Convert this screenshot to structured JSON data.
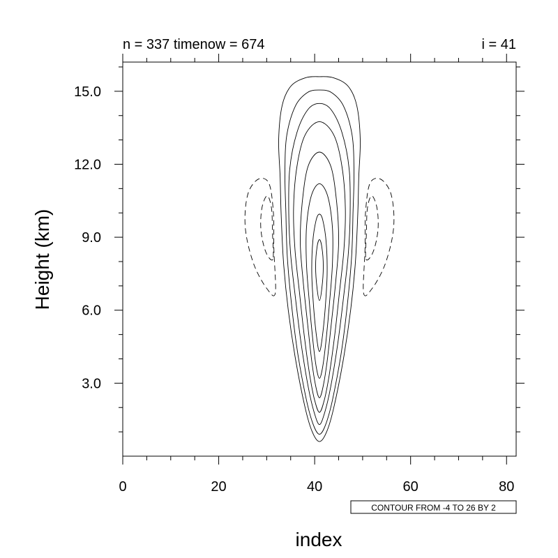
{
  "chart_data": {
    "type": "contour",
    "title_left": "n = 337 timenow = 674",
    "title_right": "i = 41",
    "xlabel": "index",
    "ylabel": "Height (km)",
    "xlim": [
      0,
      82
    ],
    "ylim": [
      0,
      16.2
    ],
    "x_ticks": [
      0,
      20,
      40,
      60,
      80
    ],
    "y_ticks": [
      3.0,
      6.0,
      9.0,
      12.0,
      15.0
    ],
    "y_tick_labels": [
      "3.0",
      "6.0",
      "9.0",
      "12.0",
      "15.0"
    ],
    "contour_info": "CONTOUR FROM -4 TO 26 BY 2",
    "contour_min": -4,
    "contour_max": 26,
    "contour_interval": 2,
    "negative_contours_dashed": true,
    "center_index": 41,
    "updraft_core": {
      "outer_top_km": 15.6,
      "outer_bottom_km": 0.4,
      "outer_half_width_index": 9
    },
    "contours": [
      {
        "level": 0,
        "style": "solid",
        "points": [
          [
            41,
            0.6
          ],
          [
            39.5,
            1.0
          ],
          [
            38,
            2.0
          ],
          [
            36,
            4.0
          ],
          [
            34.5,
            6.0
          ],
          [
            33.5,
            8.0
          ],
          [
            33,
            10.0
          ],
          [
            32.8,
            11.5
          ],
          [
            32.5,
            13.0
          ],
          [
            33.2,
            14.4
          ],
          [
            35,
            15.2
          ],
          [
            38,
            15.55
          ],
          [
            41,
            15.6
          ],
          [
            44,
            15.55
          ],
          [
            47,
            15.2
          ],
          [
            48.8,
            14.4
          ],
          [
            49.5,
            13.0
          ],
          [
            49.2,
            11.5
          ],
          [
            49,
            10.0
          ],
          [
            48.5,
            8.0
          ],
          [
            47.5,
            6.0
          ],
          [
            46,
            4.0
          ],
          [
            44,
            2.0
          ],
          [
            42.5,
            1.0
          ],
          [
            41,
            0.6
          ]
        ]
      },
      {
        "level": 2,
        "style": "solid",
        "points": [
          [
            41,
            0.9
          ],
          [
            39.7,
            1.3
          ],
          [
            38.3,
            2.3
          ],
          [
            36.5,
            4.2
          ],
          [
            35.2,
            6.2
          ],
          [
            34.3,
            8.2
          ],
          [
            34,
            10.0
          ],
          [
            33.8,
            11.7
          ],
          [
            34.2,
            13.2
          ],
          [
            36,
            14.4
          ],
          [
            38.5,
            14.95
          ],
          [
            41,
            15.05
          ],
          [
            43.5,
            14.95
          ],
          [
            46,
            14.4
          ],
          [
            47.8,
            13.2
          ],
          [
            48.2,
            11.7
          ],
          [
            48,
            10.0
          ],
          [
            47.7,
            8.2
          ],
          [
            46.8,
            6.2
          ],
          [
            45.5,
            4.2
          ],
          [
            43.7,
            2.3
          ],
          [
            42.3,
            1.3
          ],
          [
            41,
            0.9
          ]
        ]
      },
      {
        "level": 4,
        "style": "solid",
        "points": [
          [
            41,
            1.3
          ],
          [
            39.9,
            1.8
          ],
          [
            38.7,
            2.8
          ],
          [
            37.2,
            4.6
          ],
          [
            36,
            6.5
          ],
          [
            35,
            8.3
          ],
          [
            34.6,
            10.0
          ],
          [
            34.8,
            11.8
          ],
          [
            36.3,
            13.3
          ],
          [
            38.6,
            14.25
          ],
          [
            41,
            14.5
          ],
          [
            43.4,
            14.25
          ],
          [
            45.7,
            13.3
          ],
          [
            47.2,
            11.8
          ],
          [
            47.4,
            10.0
          ],
          [
            47,
            8.3
          ],
          [
            46,
            6.5
          ],
          [
            44.8,
            4.6
          ],
          [
            43.3,
            2.8
          ],
          [
            42.1,
            1.8
          ],
          [
            41,
            1.3
          ]
        ]
      },
      {
        "level": 6,
        "style": "solid",
        "points": [
          [
            41,
            1.8
          ],
          [
            40,
            2.3
          ],
          [
            39,
            3.3
          ],
          [
            37.8,
            5.0
          ],
          [
            36.8,
            6.8
          ],
          [
            35.9,
            8.5
          ],
          [
            35.6,
            10.2
          ],
          [
            36.3,
            11.9
          ],
          [
            38,
            13.2
          ],
          [
            41,
            13.75
          ],
          [
            44,
            13.2
          ],
          [
            45.7,
            11.9
          ],
          [
            46.4,
            10.2
          ],
          [
            46.1,
            8.5
          ],
          [
            45.2,
            6.8
          ],
          [
            44.2,
            5.0
          ],
          [
            43,
            3.3
          ],
          [
            42,
            2.3
          ],
          [
            41,
            1.8
          ]
        ]
      },
      {
        "level": 8,
        "style": "solid",
        "points": [
          [
            41,
            2.4
          ],
          [
            40.2,
            2.9
          ],
          [
            39.4,
            3.9
          ],
          [
            38.5,
            5.5
          ],
          [
            37.6,
            7.2
          ],
          [
            37,
            8.8
          ],
          [
            37.4,
            10.4
          ],
          [
            38.6,
            11.9
          ],
          [
            41,
            12.5
          ],
          [
            43.4,
            11.9
          ],
          [
            44.6,
            10.4
          ],
          [
            45,
            8.8
          ],
          [
            44.4,
            7.2
          ],
          [
            43.5,
            5.5
          ],
          [
            42.6,
            3.9
          ],
          [
            41.8,
            2.9
          ],
          [
            41,
            2.4
          ]
        ]
      },
      {
        "level": 10,
        "style": "solid",
        "points": [
          [
            41,
            3.2
          ],
          [
            40.3,
            3.7
          ],
          [
            39.6,
            4.8
          ],
          [
            38.9,
            6.3
          ],
          [
            38.3,
            7.9
          ],
          [
            38.3,
            9.4
          ],
          [
            39.3,
            10.7
          ],
          [
            41,
            11.2
          ],
          [
            42.7,
            10.7
          ],
          [
            43.7,
            9.4
          ],
          [
            43.7,
            7.9
          ],
          [
            43.1,
            6.3
          ],
          [
            42.4,
            4.8
          ],
          [
            41.7,
            3.7
          ],
          [
            41,
            3.2
          ]
        ]
      },
      {
        "level": 12,
        "style": "solid",
        "points": [
          [
            41,
            4.3
          ],
          [
            40.4,
            4.9
          ],
          [
            39.8,
            6.1
          ],
          [
            39.4,
            7.5
          ],
          [
            39.6,
            8.8
          ],
          [
            40.3,
            9.7
          ],
          [
            41,
            9.95
          ],
          [
            41.7,
            9.7
          ],
          [
            42.4,
            8.8
          ],
          [
            42.6,
            7.5
          ],
          [
            42.2,
            6.1
          ],
          [
            41.6,
            4.9
          ],
          [
            41,
            4.3
          ]
        ]
      },
      {
        "level": 14,
        "style": "solid",
        "points": [
          [
            41,
            6.4
          ],
          [
            40.5,
            6.9
          ],
          [
            40.2,
            7.8
          ],
          [
            40.5,
            8.6
          ],
          [
            41,
            8.9
          ],
          [
            41.5,
            8.6
          ],
          [
            41.8,
            7.8
          ],
          [
            41.5,
            6.9
          ],
          [
            41,
            6.4
          ]
        ]
      },
      {
        "level": -2,
        "style": "dashed",
        "points": [
          [
            31.8,
            6.7
          ],
          [
            30,
            6.9
          ],
          [
            27.5,
            7.8
          ],
          [
            25.8,
            9.0
          ],
          [
            25.5,
            10.0
          ],
          [
            26.3,
            10.9
          ],
          [
            28.4,
            11.4
          ],
          [
            30.5,
            11.2
          ],
          [
            31.4,
            10.0
          ],
          [
            31.5,
            8.5
          ],
          [
            31.8,
            6.7
          ]
        ]
      },
      {
        "level": -4,
        "style": "dashed",
        "points": [
          [
            31.3,
            8.1
          ],
          [
            29.8,
            8.4
          ],
          [
            28.8,
            9.3
          ],
          [
            29,
            10.2
          ],
          [
            30.1,
            10.7
          ],
          [
            31,
            10.2
          ],
          [
            31.2,
            9.2
          ],
          [
            31.3,
            8.1
          ]
        ]
      },
      {
        "level": -2,
        "style": "dashed",
        "points": [
          [
            50.2,
            6.7
          ],
          [
            52,
            6.9
          ],
          [
            54.5,
            7.8
          ],
          [
            56.2,
            9.0
          ],
          [
            56.5,
            10.0
          ],
          [
            55.7,
            10.9
          ],
          [
            53.6,
            11.4
          ],
          [
            51.5,
            11.2
          ],
          [
            50.6,
            10.0
          ],
          [
            50.5,
            8.5
          ],
          [
            50.2,
            6.7
          ]
        ]
      },
      {
        "level": -4,
        "style": "dashed",
        "points": [
          [
            50.7,
            8.1
          ],
          [
            52.2,
            8.4
          ],
          [
            53.2,
            9.3
          ],
          [
            53,
            10.2
          ],
          [
            51.9,
            10.7
          ],
          [
            51,
            10.2
          ],
          [
            50.8,
            9.2
          ],
          [
            50.7,
            8.1
          ]
        ]
      }
    ]
  }
}
